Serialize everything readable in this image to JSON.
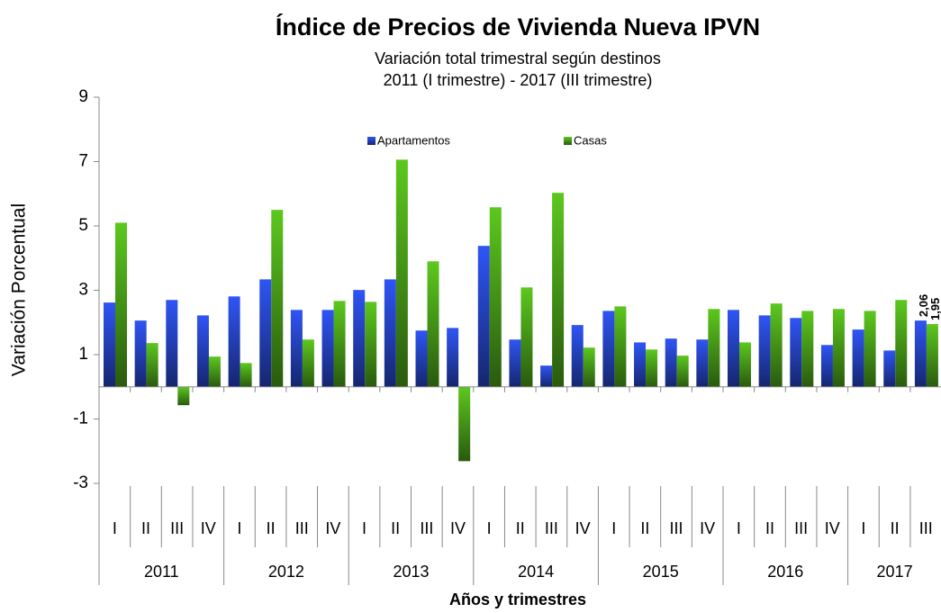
{
  "chart_data": {
    "type": "bar",
    "title": "Índice de Precios de Vivienda Nueva IPVN",
    "subtitle": [
      "Variación total trimestral según destinos",
      "2011 (I trimestre) - 2017 (III trimestre)"
    ],
    "y_label": "Variación Porcentual",
    "x_label": "Años y trimestres",
    "categories": [
      "I",
      "II",
      "III",
      "IV",
      "I",
      "II",
      "III",
      "IV",
      "I",
      "II",
      "III",
      "IV",
      "I",
      "II",
      "III",
      "IV",
      "I",
      "II",
      "III",
      "IV",
      "I",
      "II",
      "III",
      "IV",
      "I",
      "II",
      "III"
    ],
    "years": [
      "2011",
      "2012",
      "2013",
      "2014",
      "2015",
      "2016",
      "2017"
    ],
    "series": [
      {
        "name": "Apartamentos",
        "color": "#2f55f5",
        "values": [
          2.62,
          2.06,
          2.7,
          2.22,
          2.81,
          3.34,
          2.39,
          2.39,
          3.01,
          3.34,
          1.75,
          1.83,
          4.38,
          1.47,
          0.66,
          1.92,
          2.36,
          1.38,
          1.5,
          1.47,
          2.39,
          2.22,
          2.14,
          1.3,
          1.78,
          1.13,
          2.06
        ],
        "value_labels": [
          null,
          null,
          null,
          null,
          null,
          null,
          null,
          null,
          null,
          null,
          null,
          null,
          null,
          null,
          null,
          null,
          null,
          null,
          null,
          null,
          null,
          null,
          null,
          null,
          null,
          null,
          "2,06"
        ]
      },
      {
        "name": "Casas",
        "color": "#5cc81e",
        "values": [
          5.1,
          1.36,
          -0.57,
          0.94,
          0.74,
          5.5,
          1.47,
          2.67,
          2.64,
          7.06,
          3.9,
          -2.31,
          5.58,
          3.09,
          6.03,
          1.22,
          2.5,
          1.16,
          0.97,
          2.42,
          1.38,
          2.59,
          2.36,
          2.42,
          2.36,
          2.7,
          1.95
        ],
        "value_labels": [
          null,
          null,
          null,
          null,
          null,
          null,
          null,
          null,
          null,
          null,
          null,
          null,
          null,
          null,
          null,
          null,
          null,
          null,
          null,
          null,
          null,
          null,
          null,
          null,
          null,
          null,
          "1,95"
        ]
      }
    ],
    "ylim": [
      -3,
      9
    ],
    "yticks": [
      -3,
      -1,
      1,
      3,
      5,
      7,
      9
    ],
    "legend": "top"
  }
}
